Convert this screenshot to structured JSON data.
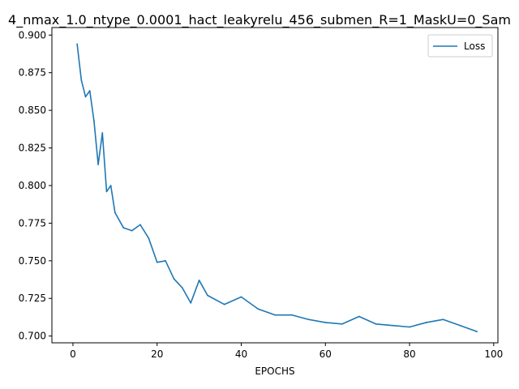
{
  "chart_data": {
    "type": "line",
    "title": "4_nmax_1.0_ntype_0.0001_hact_leakyrelu_456_submen_R=1_MaskU=0_Sam",
    "xlabel": "EPOCHS",
    "ylabel": "",
    "xlim": [
      -5,
      101
    ],
    "ylim": [
      0.6955,
      0.905
    ],
    "xticks": [
      0,
      20,
      40,
      60,
      80,
      100
    ],
    "yticks": [
      0.7,
      0.725,
      0.75,
      0.775,
      0.8,
      0.825,
      0.85,
      0.875,
      0.9
    ],
    "xtick_labels": [
      "0",
      "20",
      "40",
      "60",
      "80",
      "100"
    ],
    "ytick_labels": [
      "0.700",
      "0.725",
      "0.750",
      "0.775",
      "0.800",
      "0.825",
      "0.850",
      "0.875",
      "0.900"
    ],
    "grid": false,
    "legend_position": "top-right",
    "series": [
      {
        "name": "Loss",
        "color": "#1f77b4",
        "x": [
          1,
          2,
          3,
          4,
          5,
          6,
          7,
          8,
          9,
          10,
          12,
          14,
          16,
          18,
          20,
          22,
          24,
          26,
          28,
          30,
          32,
          36,
          40,
          44,
          48,
          52,
          56,
          60,
          64,
          68,
          72,
          76,
          80,
          84,
          88,
          92,
          96
        ],
        "y": [
          0.894,
          0.87,
          0.859,
          0.863,
          0.843,
          0.814,
          0.835,
          0.796,
          0.8,
          0.782,
          0.772,
          0.77,
          0.774,
          0.765,
          0.749,
          0.75,
          0.738,
          0.732,
          0.722,
          0.737,
          0.727,
          0.721,
          0.726,
          0.718,
          0.714,
          0.714,
          0.711,
          0.709,
          0.708,
          0.713,
          0.708,
          0.707,
          0.706,
          0.709,
          0.711,
          0.707,
          0.703
        ]
      }
    ]
  }
}
